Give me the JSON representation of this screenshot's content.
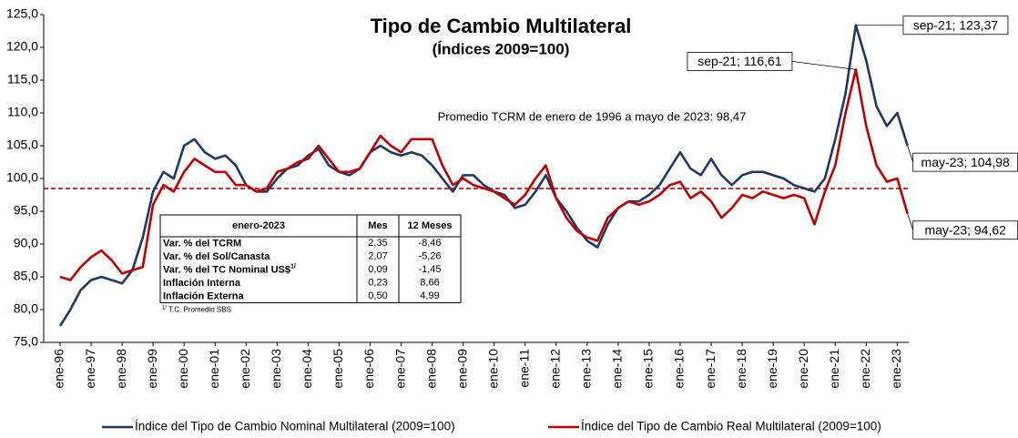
{
  "chart_data": {
    "type": "line",
    "title": "Tipo de Cambio Multilateral",
    "subtitle": "(Índices 2009=100)",
    "categories": [
      "ene-96",
      null,
      null,
      "ene-97",
      null,
      null,
      "ene-98",
      null,
      null,
      "ene-99",
      null,
      null,
      "ene-00",
      null,
      null,
      "ene-01",
      null,
      null,
      "ene-02",
      null,
      null,
      "ene-03",
      null,
      null,
      "ene-04",
      null,
      null,
      "ene-05",
      null,
      null,
      "ene-06",
      null,
      null,
      "ene-07",
      null,
      null,
      "ene-08",
      null,
      null,
      "ene-09",
      null,
      null,
      "ene-10",
      null,
      null,
      "ene-11",
      null,
      null,
      "ene-12",
      null,
      null,
      "ene-13",
      null,
      null,
      "ene-14",
      null,
      null,
      "ene-15",
      null,
      null,
      "ene-16",
      null,
      null,
      "ene-17",
      null,
      null,
      "ene-18",
      null,
      null,
      "ene-19",
      null,
      null,
      "ene-20",
      null,
      null,
      "ene-21",
      null,
      null,
      "ene-22",
      null,
      null,
      "ene-23",
      null
    ],
    "series": [
      {
        "name": "Índice del Tipo de Cambio Nominal Multilateral (2009=100)",
        "color": "#203864",
        "values": [
          77.5,
          80,
          83,
          84.5,
          85,
          84.5,
          84,
          86,
          91,
          98,
          101,
          100,
          105,
          106,
          104,
          103,
          103.5,
          102,
          99,
          98,
          98,
          100,
          101.5,
          102,
          103.5,
          104.5,
          102,
          101,
          100.5,
          101.5,
          104,
          105,
          104,
          103.5,
          104,
          103.5,
          102,
          100,
          98,
          100.5,
          100.5,
          99,
          98,
          97.5,
          95.5,
          96,
          98,
          100.5,
          97,
          95,
          92.5,
          90.5,
          89.5,
          93,
          95.5,
          96.5,
          96.5,
          97.5,
          99,
          101.5,
          104,
          101.5,
          100.5,
          103,
          100.5,
          99,
          100.5,
          101,
          101,
          100.5,
          100,
          99,
          98.5,
          98,
          100,
          106,
          113,
          123.37,
          118,
          111,
          108,
          110,
          104.98
        ],
        "annotations": [
          {
            "value": 123.37,
            "label": "sep-21; 123,37"
          },
          {
            "value": 104.98,
            "label": "may-23; 104,98"
          }
        ]
      },
      {
        "name": "Índice del Tipo de Cambio Real Multilateral (2009=100)",
        "color": "#c00000",
        "values": [
          85,
          84.5,
          86.5,
          88,
          89,
          87.5,
          85.5,
          86,
          86.5,
          96,
          99,
          98,
          101,
          103,
          102,
          101,
          101,
          99,
          99,
          98,
          98.5,
          101,
          101.5,
          102.5,
          103,
          105,
          103,
          101,
          101,
          101.5,
          104,
          106.5,
          105,
          104,
          106,
          106,
          106,
          102,
          99,
          100,
          99,
          98.5,
          98,
          97,
          96,
          97.5,
          100,
          102,
          97,
          94,
          92,
          91,
          90.5,
          94,
          95.5,
          96.5,
          96,
          96.5,
          97.5,
          99,
          99.5,
          97,
          98,
          96.5,
          94,
          95.5,
          97.5,
          97,
          98,
          97.5,
          97,
          97.5,
          97,
          93,
          98,
          102,
          110,
          116.61,
          108,
          102,
          99.5,
          100,
          94.62
        ],
        "annotations": [
          {
            "value": 116.61,
            "label": "sep-21; 116,61"
          },
          {
            "value": 94.62,
            "label": "may-23; 94,62"
          }
        ]
      }
    ],
    "reference": {
      "value": 98.47,
      "color": "#c00000",
      "label": "Promedio TCRM de enero de 1996 a mayo de 2023: 98,47"
    },
    "ylim": [
      75,
      125
    ],
    "yticks": [
      {
        "value": 75,
        "label": "75,0"
      },
      {
        "value": 80,
        "label": "80,0"
      },
      {
        "value": 85,
        "label": "85,0"
      },
      {
        "value": 90,
        "label": "90,0"
      },
      {
        "value": 95,
        "label": "95,0"
      },
      {
        "value": 100,
        "label": "100,0"
      },
      {
        "value": 105,
        "label": "105,0"
      },
      {
        "value": 110,
        "label": "110,0"
      },
      {
        "value": 115,
        "label": "115,0"
      },
      {
        "value": 120,
        "label": "120,0"
      },
      {
        "value": 125,
        "label": "125,0"
      }
    ],
    "table": {
      "header": [
        "enero-2023",
        "Mes",
        "12 Meses"
      ],
      "rows": [
        [
          {
            "text": "Var. % del TCRM"
          },
          "2,35",
          "-8,46"
        ],
        [
          {
            "text": "Var. % del Sol/Canasta"
          },
          "2,07",
          "-5,26"
        ],
        [
          {
            "text": "Var. % del TC Nominal US$",
            "note": "1/"
          },
          "0,09",
          "-1,45"
        ],
        [
          {
            "text": "Inflación Interna"
          },
          "0,23",
          "8,66"
        ],
        [
          {
            "text": "Inflación Externa"
          },
          "0,50",
          "4,99"
        ]
      ],
      "footnote": {
        "mark": "1/",
        "text": "T.C. Promedio SBS"
      }
    }
  }
}
